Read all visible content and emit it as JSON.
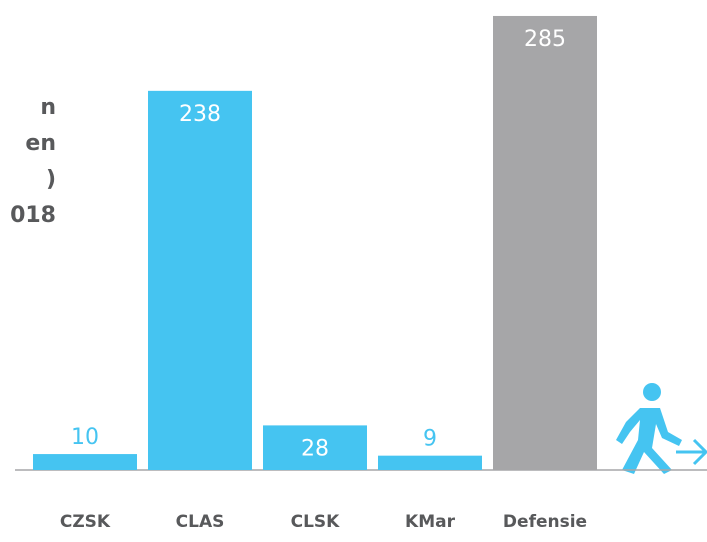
{
  "chart_data": {
    "type": "bar",
    "title_lines": [
      "n",
      "en",
      ")",
      "018"
    ],
    "categories": [
      "CZSK",
      "CLAS",
      "CLSK",
      "KMar",
      "Defensie"
    ],
    "values": [
      10,
      238,
      28,
      9,
      285
    ],
    "colors": [
      "#45c4f1",
      "#45c4f1",
      "#45c4f1",
      "#45c4f1",
      "#a6a6a8"
    ],
    "ylim": [
      0,
      290
    ]
  }
}
